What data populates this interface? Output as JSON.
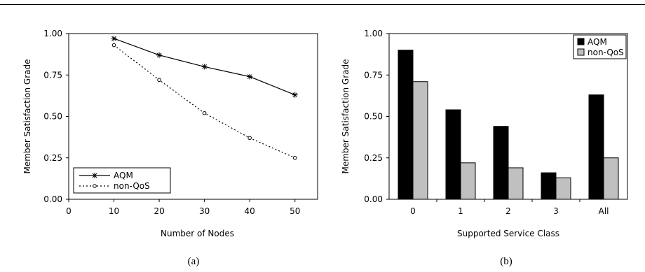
{
  "chart_data": [
    {
      "type": "line",
      "caption": "(a)",
      "xlabel": "Number of Nodes",
      "ylabel": "Member Satisfaction Grade",
      "xlim": [
        0,
        55
      ],
      "ylim": [
        0,
        1.0
      ],
      "x_ticks": [
        "0",
        "10",
        "20",
        "30",
        "40",
        "50"
      ],
      "y_ticks": [
        "0.00",
        "0.25",
        "0.50",
        "0.75",
        "1.00"
      ],
      "grid": false,
      "legend_position": "bottom-left",
      "series": [
        {
          "name": "AQM",
          "style": "solid",
          "marker": "asterisk",
          "x": [
            10,
            20,
            30,
            40,
            50
          ],
          "values": [
            0.97,
            0.87,
            0.8,
            0.74,
            0.63
          ]
        },
        {
          "name": "non-QoS",
          "style": "dotted",
          "marker": "circle",
          "x": [
            10,
            20,
            30,
            40,
            50
          ],
          "values": [
            0.93,
            0.72,
            0.52,
            0.37,
            0.25
          ]
        }
      ]
    },
    {
      "type": "bar",
      "caption": "(b)",
      "xlabel": "Supported Service Class",
      "ylabel": "Member Satisfaction Grade",
      "ylim": [
        0,
        1.0
      ],
      "y_ticks": [
        "0.00",
        "0.25",
        "0.50",
        "0.75",
        "1.00"
      ],
      "categories": [
        "0",
        "1",
        "2",
        "3",
        "All"
      ],
      "grid": false,
      "legend_position": "top-right",
      "series": [
        {
          "name": "AQM",
          "color": "#000000",
          "values": [
            0.9,
            0.54,
            0.44,
            0.16,
            0.63
          ]
        },
        {
          "name": "non-QoS",
          "color": "#c0c0c0",
          "values": [
            0.71,
            0.22,
            0.19,
            0.13,
            0.25
          ]
        }
      ]
    }
  ]
}
